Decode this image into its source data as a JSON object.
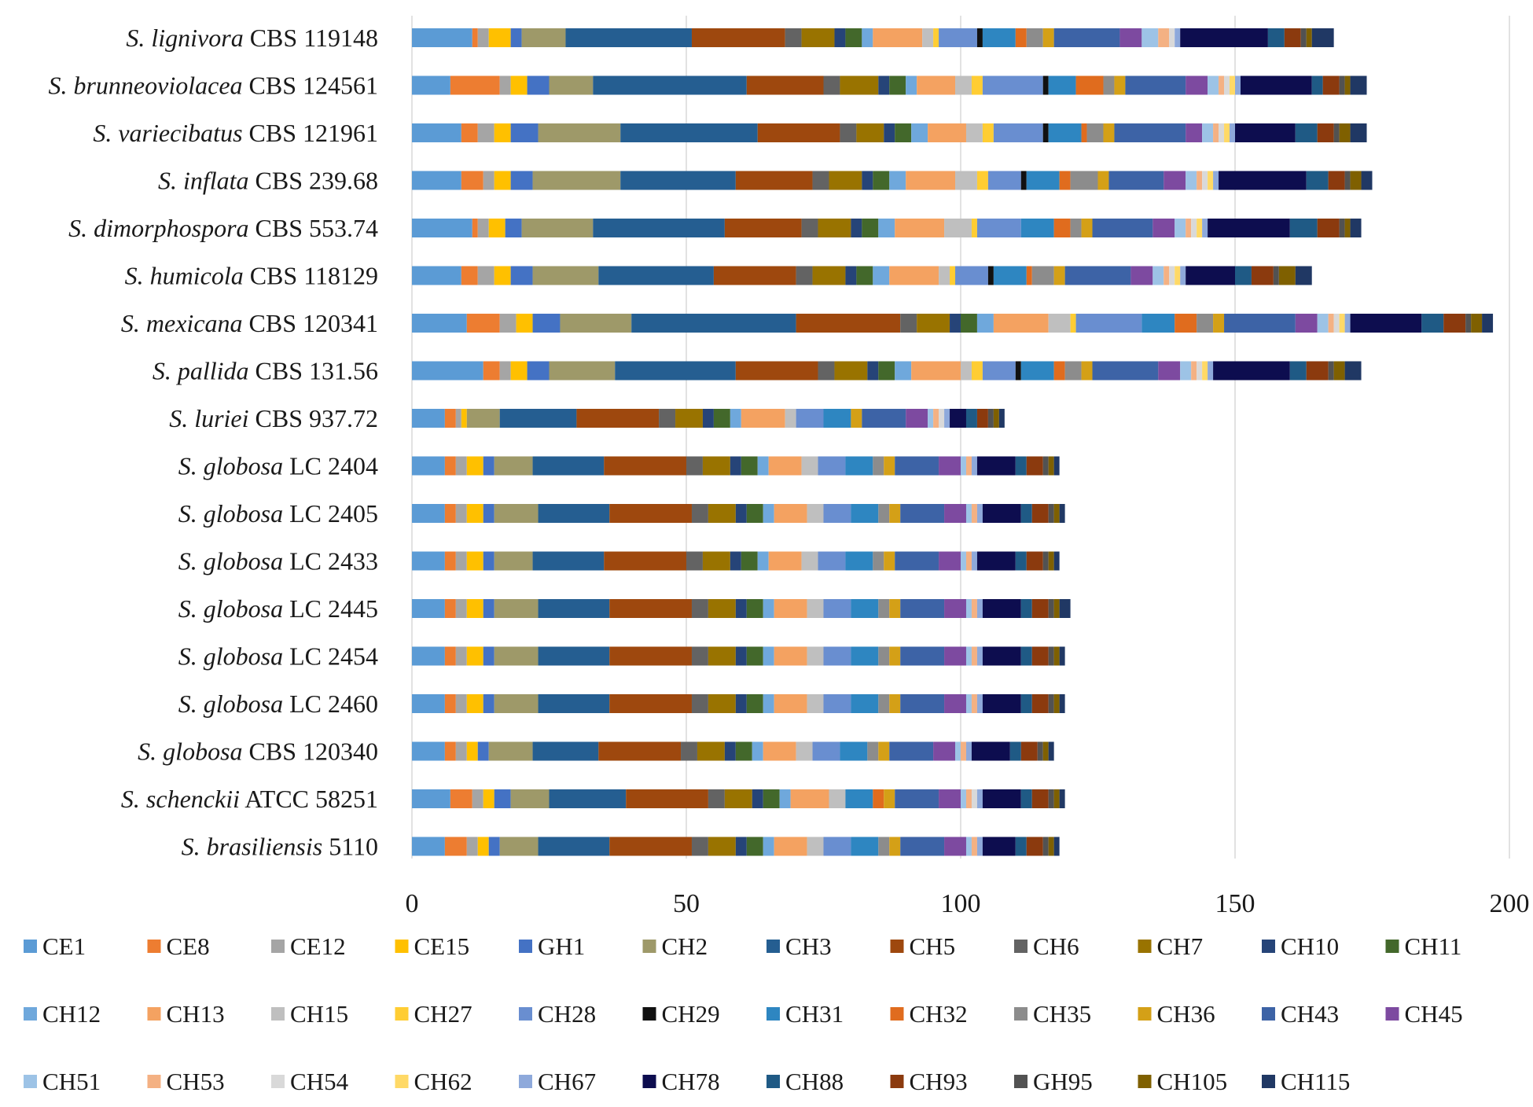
{
  "chart_data": {
    "type": "bar",
    "orientation": "horizontal",
    "stacked": true,
    "title": "",
    "xlabel": "",
    "ylabel": "",
    "xlim": [
      0,
      200
    ],
    "x_ticks": [
      "0",
      "50",
      "100",
      "150",
      "200"
    ],
    "grid": "vertical",
    "legend_position": "bottom",
    "categories": [
      {
        "genus": "S.",
        "species": "lignivora",
        "strain": "CBS 119148"
      },
      {
        "genus": "S.",
        "species": "brunneoviolacea",
        "strain": "CBS 124561"
      },
      {
        "genus": "S.",
        "species": "variecibatus",
        "strain": "CBS 121961"
      },
      {
        "genus": "S.",
        "species": "inflata",
        "strain": "CBS 239.68"
      },
      {
        "genus": "S.",
        "species": "dimorphospora",
        "strain": "CBS 553.74"
      },
      {
        "genus": "S.",
        "species": "humicola",
        "strain": "CBS 118129"
      },
      {
        "genus": "S.",
        "species": "mexicana",
        "strain": "CBS 120341"
      },
      {
        "genus": "S.",
        "species": "pallida",
        "strain": "CBS 131.56"
      },
      {
        "genus": "S.",
        "species": "luriei",
        "strain": "CBS 937.72"
      },
      {
        "genus": "S.",
        "species": "globosa",
        "strain": "LC 2404"
      },
      {
        "genus": "S.",
        "species": "globosa",
        "strain": "LC 2405"
      },
      {
        "genus": "S.",
        "species": "globosa",
        "strain": "LC 2433"
      },
      {
        "genus": "S.",
        "species": "globosa",
        "strain": "LC 2445"
      },
      {
        "genus": "S.",
        "species": "globosa",
        "strain": "LC 2454"
      },
      {
        "genus": "S.",
        "species": "globosa",
        "strain": "LC 2460"
      },
      {
        "genus": "S.",
        "species": "globosa",
        "strain": "CBS 120340"
      },
      {
        "genus": "S.",
        "species": "schenckii",
        "strain": "ATCC 58251"
      },
      {
        "genus": "S.",
        "species": "brasiliensis",
        "strain": "5110"
      }
    ],
    "series": [
      {
        "name": "CE1",
        "color": "#5B9BD5",
        "values": [
          11,
          7,
          9,
          9,
          11,
          9,
          10,
          13,
          6,
          6,
          6,
          6,
          6,
          6,
          6,
          6,
          7,
          6
        ]
      },
      {
        "name": "CE8",
        "color": "#ED7D31",
        "values": [
          1,
          9,
          3,
          4,
          1,
          3,
          6,
          3,
          2,
          2,
          2,
          2,
          2,
          2,
          2,
          2,
          4,
          4
        ]
      },
      {
        "name": "CE12",
        "color": "#A5A5A5",
        "values": [
          2,
          2,
          3,
          2,
          2,
          3,
          3,
          2,
          1,
          2,
          2,
          2,
          2,
          2,
          2,
          2,
          2,
          2
        ]
      },
      {
        "name": "CE15",
        "color": "#FFC000",
        "values": [
          4,
          3,
          3,
          3,
          3,
          3,
          3,
          3,
          1,
          3,
          3,
          3,
          3,
          3,
          3,
          2,
          2,
          2
        ]
      },
      {
        "name": "GH1",
        "color": "#4472C4",
        "values": [
          2,
          4,
          5,
          4,
          3,
          4,
          5,
          4,
          0,
          2,
          2,
          2,
          2,
          2,
          2,
          2,
          3,
          2
        ]
      },
      {
        "name": "CH2",
        "color": "#9E9969",
        "values": [
          8,
          8,
          15,
          16,
          13,
          12,
          13,
          12,
          6,
          7,
          8,
          7,
          8,
          8,
          8,
          8,
          7,
          7
        ]
      },
      {
        "name": "CH3",
        "color": "#255E91",
        "values": [
          23,
          28,
          25,
          21,
          24,
          21,
          30,
          22,
          14,
          13,
          13,
          13,
          13,
          13,
          13,
          12,
          14,
          13
        ]
      },
      {
        "name": "CH5",
        "color": "#9E480E",
        "values": [
          17,
          14,
          15,
          14,
          14,
          15,
          19,
          15,
          15,
          15,
          15,
          15,
          15,
          15,
          15,
          15,
          15,
          15
        ]
      },
      {
        "name": "CH6",
        "color": "#636363",
        "values": [
          3,
          3,
          3,
          3,
          3,
          3,
          3,
          3,
          3,
          3,
          3,
          3,
          3,
          3,
          3,
          3,
          3,
          3
        ]
      },
      {
        "name": "CH7",
        "color": "#997300",
        "values": [
          6,
          7,
          5,
          6,
          6,
          6,
          6,
          6,
          5,
          5,
          5,
          5,
          5,
          5,
          5,
          5,
          5,
          5
        ]
      },
      {
        "name": "CH10",
        "color": "#264478",
        "values": [
          2,
          2,
          2,
          2,
          2,
          2,
          2,
          2,
          2,
          2,
          2,
          2,
          2,
          2,
          2,
          2,
          2,
          2
        ]
      },
      {
        "name": "CH11",
        "color": "#43682B",
        "values": [
          3,
          3,
          3,
          3,
          3,
          3,
          3,
          3,
          3,
          3,
          3,
          3,
          3,
          3,
          3,
          3,
          3,
          3
        ]
      },
      {
        "name": "CH12",
        "color": "#6FA8DC",
        "values": [
          2,
          2,
          3,
          3,
          3,
          3,
          3,
          3,
          2,
          2,
          2,
          2,
          2,
          2,
          2,
          2,
          2,
          2
        ]
      },
      {
        "name": "CH13",
        "color": "#F4A261",
        "values": [
          9,
          7,
          7,
          9,
          9,
          9,
          10,
          9,
          8,
          6,
          6,
          6,
          6,
          6,
          6,
          6,
          7,
          6
        ]
      },
      {
        "name": "CH15",
        "color": "#BFBFBF",
        "values": [
          2,
          3,
          3,
          4,
          5,
          2,
          4,
          2,
          2,
          3,
          3,
          3,
          3,
          3,
          3,
          3,
          3,
          3
        ]
      },
      {
        "name": "CH27",
        "color": "#FFCD33",
        "values": [
          1,
          2,
          2,
          2,
          1,
          1,
          1,
          2,
          0,
          0,
          0,
          0,
          0,
          0,
          0,
          0,
          0,
          0
        ]
      },
      {
        "name": "CH28",
        "color": "#698ED0",
        "values": [
          7,
          11,
          9,
          6,
          8,
          6,
          12,
          6,
          5,
          5,
          5,
          5,
          5,
          5,
          5,
          5,
          0,
          5
        ]
      },
      {
        "name": "CH29",
        "color": "#111111",
        "values": [
          1,
          1,
          1,
          1,
          0,
          1,
          0,
          1,
          0,
          0,
          0,
          0,
          0,
          0,
          0,
          0,
          0,
          0
        ]
      },
      {
        "name": "CH31",
        "color": "#2E86C1",
        "values": [
          6,
          5,
          6,
          6,
          6,
          6,
          6,
          6,
          5,
          5,
          5,
          5,
          5,
          5,
          5,
          5,
          5,
          5
        ]
      },
      {
        "name": "CH32",
        "color": "#E06C1E",
        "values": [
          2,
          5,
          1,
          2,
          3,
          1,
          4,
          2,
          0,
          0,
          0,
          0,
          0,
          0,
          0,
          0,
          2,
          0
        ]
      },
      {
        "name": "CH35",
        "color": "#8C8C8C",
        "values": [
          3,
          2,
          3,
          5,
          2,
          4,
          3,
          3,
          0,
          2,
          2,
          2,
          2,
          2,
          2,
          2,
          0,
          2
        ]
      },
      {
        "name": "CH36",
        "color": "#D4A017",
        "values": [
          2,
          2,
          2,
          2,
          2,
          2,
          2,
          2,
          2,
          2,
          2,
          2,
          2,
          2,
          2,
          2,
          2,
          2
        ]
      },
      {
        "name": "CH43",
        "color": "#3D63A6",
        "values": [
          12,
          11,
          13,
          10,
          11,
          12,
          13,
          12,
          8,
          8,
          8,
          8,
          8,
          8,
          8,
          8,
          8,
          8
        ]
      },
      {
        "name": "CH45",
        "color": "#7D4AA0",
        "values": [
          4,
          4,
          3,
          4,
          4,
          4,
          4,
          4,
          4,
          4,
          4,
          4,
          4,
          4,
          4,
          4,
          4,
          4
        ]
      },
      {
        "name": "CH51",
        "color": "#9DC3E6",
        "values": [
          3,
          2,
          2,
          2,
          2,
          2,
          2,
          2,
          1,
          1,
          1,
          1,
          1,
          1,
          1,
          1,
          1,
          1
        ]
      },
      {
        "name": "CH53",
        "color": "#F4B183",
        "values": [
          2,
          1,
          1,
          1,
          1,
          1,
          1,
          1,
          1,
          1,
          1,
          1,
          1,
          1,
          1,
          1,
          1,
          1
        ]
      },
      {
        "name": "CH54",
        "color": "#D9D9D9",
        "values": [
          1,
          1,
          1,
          1,
          1,
          1,
          1,
          1,
          1,
          0,
          0,
          0,
          0,
          0,
          0,
          0,
          1,
          0
        ]
      },
      {
        "name": "CH62",
        "color": "#FFD966",
        "values": [
          0,
          1,
          1,
          1,
          1,
          1,
          1,
          1,
          0,
          0,
          0,
          0,
          0,
          0,
          0,
          0,
          0,
          0
        ]
      },
      {
        "name": "CH67",
        "color": "#8EA9DB",
        "values": [
          1,
          1,
          1,
          1,
          1,
          1,
          1,
          1,
          1,
          1,
          1,
          1,
          1,
          1,
          1,
          1,
          1,
          1
        ]
      },
      {
        "name": "CH78",
        "color": "#0D0D4F",
        "values": [
          16,
          13,
          11,
          16,
          15,
          9,
          13,
          14,
          3,
          7,
          7,
          7,
          7,
          7,
          7,
          7,
          7,
          6
        ]
      },
      {
        "name": "CH88",
        "color": "#1F5A85",
        "values": [
          3,
          2,
          4,
          4,
          5,
          3,
          4,
          3,
          2,
          2,
          2,
          2,
          2,
          2,
          2,
          2,
          2,
          2
        ]
      },
      {
        "name": "CH93",
        "color": "#8B3A0E",
        "values": [
          3,
          3,
          3,
          3,
          4,
          4,
          4,
          4,
          2,
          3,
          3,
          3,
          3,
          3,
          3,
          3,
          3,
          3
        ]
      },
      {
        "name": "GH95",
        "color": "#525252",
        "values": [
          1,
          1,
          1,
          1,
          1,
          1,
          1,
          1,
          1,
          1,
          1,
          1,
          1,
          1,
          1,
          1,
          1,
          1
        ]
      },
      {
        "name": "CH105",
        "color": "#7F6000",
        "values": [
          1,
          1,
          2,
          2,
          1,
          3,
          2,
          2,
          1,
          1,
          1,
          1,
          1,
          1,
          1,
          1,
          1,
          1
        ]
      },
      {
        "name": "CH115",
        "color": "#203864",
        "values": [
          4,
          3,
          3,
          2,
          2,
          3,
          2,
          3,
          1,
          1,
          1,
          1,
          2,
          1,
          1,
          1,
          1,
          1
        ]
      }
    ]
  }
}
